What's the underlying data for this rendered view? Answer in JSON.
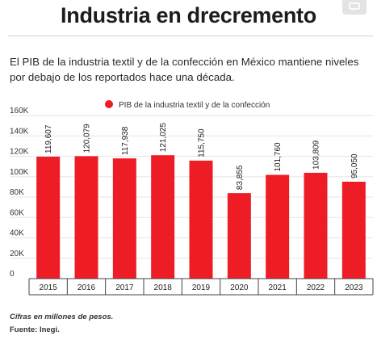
{
  "header": {
    "title": "Industria en drecremento",
    "subtitle": "El PIB de la industria textil y de la confección en México mantiene niveles por debajo de los reportados hace una década."
  },
  "footer": {
    "note": "Cifras en millones de pesos.",
    "source": "Fuente: Inegi."
  },
  "icons": {
    "corner": "comment-icon"
  },
  "colors": {
    "bar": "#ee1c25",
    "grid": "#e6e6e6",
    "axis": "#444444"
  },
  "chart_data": {
    "type": "bar",
    "categories": [
      "2015",
      "2016",
      "2017",
      "2018",
      "2019",
      "2020",
      "2021",
      "2022",
      "2023"
    ],
    "series": [
      {
        "name": "PIB de la industria textil y de la confección",
        "values": [
          119607,
          120079,
          117938,
          121025,
          115750,
          83855,
          101760,
          103809,
          95050
        ],
        "labels": [
          "119,607",
          "120,079",
          "117,938",
          "121,025",
          "115,750",
          "83,855",
          "101,760",
          "103,809",
          "95,050"
        ]
      }
    ],
    "yticks": [
      "0",
      "20K",
      "40K",
      "60K",
      "80K",
      "100K",
      "120K",
      "140K",
      "160K"
    ],
    "ylim": [
      0,
      160000
    ],
    "legend": "top",
    "grid": true,
    "title": "",
    "xlabel": "",
    "ylabel": ""
  }
}
